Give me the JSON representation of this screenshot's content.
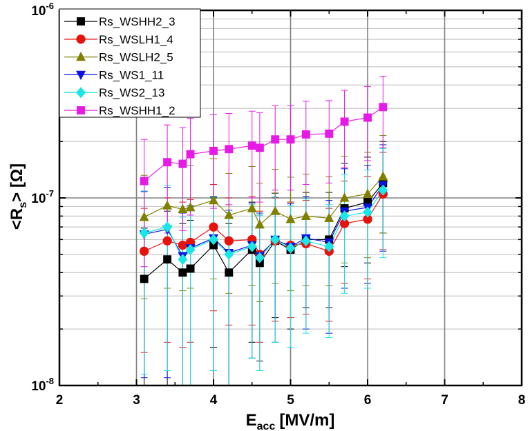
{
  "chart_data": {
    "type": "line",
    "title": "",
    "xlabel": {
      "main": "E",
      "sub": "acc",
      "unit": "[MV/m]"
    },
    "ylabel": {
      "pre": "<R",
      "sub": "s",
      "post": "> [Ω]"
    },
    "xlim": [
      2,
      8
    ],
    "ylim": [
      1e-08,
      1e-06
    ],
    "yscale": "log",
    "grid": true,
    "legend_position": "top-left",
    "xticks": [
      "2",
      "3",
      "4",
      "5",
      "6",
      "7",
      "8"
    ],
    "yticks": [
      {
        "value": 1e-08,
        "base": "10",
        "exp": "-8"
      },
      {
        "value": 1e-07,
        "base": "10",
        "exp": "-7"
      },
      {
        "value": 1e-06,
        "base": "10",
        "exp": "-6"
      }
    ],
    "x": [
      3.1,
      3.4,
      3.6,
      3.7,
      4.0,
      4.2,
      4.5,
      4.6,
      4.8,
      5.0,
      5.2,
      5.5,
      5.7,
      6.0,
      6.2
    ],
    "series": [
      {
        "name": "Rs_WSHH2_3",
        "color": "#000000",
        "marker": "square",
        "y": [
          3.7e-08,
          4.7e-08,
          4e-08,
          4.2e-08,
          5.6e-08,
          4e-08,
          5.3e-08,
          4.5e-08,
          5.9e-08,
          5.3e-08,
          6e-08,
          6e-08,
          8.8e-08,
          9.5e-08,
          1.2e-07
        ],
        "err_up": [
          3.2e-08,
          3.8e-08,
          3.3e-08,
          3.4e-08,
          4.4e-08,
          3.3e-08,
          4.2e-08,
          3.6e-08,
          4.7e-08,
          4.2e-08,
          4.7e-08,
          4.7e-08,
          6.5e-08,
          7e-08,
          8e-08
        ],
        "err_lo": [
          3.4e-08,
          4.4e-08,
          3.7e-08,
          3.9e-08,
          4e-08,
          3.75e-08,
          3.6e-08,
          3.15e-08,
          3.6e-08,
          3.3e-08,
          3.4e-08,
          3.4e-08,
          4.5e-08,
          5e-08,
          5.5e-08
        ]
      },
      {
        "name": "Rs_WSLH1_4",
        "color": "#e8120c",
        "marker": "circle",
        "y": [
          5.2e-08,
          5.9e-08,
          5.6e-08,
          5.8e-08,
          7e-08,
          5.9e-08,
          6e-08,
          5e-08,
          5.9e-08,
          5.6e-08,
          5.7e-08,
          5.2e-08,
          7.3e-08,
          7.7e-08,
          1.05e-07
        ],
        "err_up": [
          3.6e-08,
          4.1e-08,
          3.9e-08,
          4e-08,
          4.8e-08,
          4.1e-08,
          4.2e-08,
          3.5e-08,
          4.1e-08,
          3.9e-08,
          4e-08,
          3.6e-08,
          5e-08,
          5.3e-08,
          7e-08
        ],
        "err_lo": [
          3.7e-08,
          4.2e-08,
          4e-08,
          4.1e-08,
          4.5e-08,
          3.8e-08,
          3.9e-08,
          3.3e-08,
          3.7e-08,
          3.3e-08,
          3.3e-08,
          3e-08,
          3.8e-08,
          4e-08,
          5.2e-08
        ]
      },
      {
        "name": "Rs_WSLH2_5",
        "color": "#808000",
        "marker": "triangle-up",
        "y": [
          7.9e-08,
          9.1e-08,
          8.7e-08,
          8.9e-08,
          9.7e-08,
          8.1e-08,
          8.8e-08,
          7.2e-08,
          8.5e-08,
          7.7e-08,
          8e-08,
          7.8e-08,
          1e-07,
          1.05e-07,
          1.3e-07
        ],
        "err_up": [
          5.3e-08,
          6.1e-08,
          5.8e-08,
          6e-08,
          6.5e-08,
          5.4e-08,
          5.9e-08,
          4.8e-08,
          5.7e-08,
          5.2e-08,
          5.4e-08,
          5.2e-08,
          6.7e-08,
          7e-08,
          8.5e-08
        ],
        "err_lo": [
          5e-08,
          5.8e-08,
          5.5e-08,
          5.6e-08,
          6e-08,
          5e-08,
          5.4e-08,
          4.4e-08,
          5e-08,
          4.5e-08,
          4.6e-08,
          4.4e-08,
          5.5e-08,
          5.7e-08,
          6.5e-08
        ]
      },
      {
        "name": "Rs_WS1_11",
        "color": "#0a14e0",
        "marker": "triangle-down",
        "y": [
          6.4e-08,
          6.8e-08,
          4.9e-08,
          5.4e-08,
          6.1e-08,
          5.1e-08,
          5.6e-08,
          4.9e-08,
          6e-08,
          5.5e-08,
          6.1e-08,
          5.8e-08,
          8.5e-08,
          8.9e-08,
          1.17e-07
        ],
        "err_up": [
          4.4e-08,
          4.6e-08,
          3.4e-08,
          3.7e-08,
          4.1e-08,
          3.5e-08,
          3.8e-08,
          3.4e-08,
          4.1e-08,
          3.8e-08,
          4.1e-08,
          3.9e-08,
          5.8e-08,
          6e-08,
          7.5e-08
        ],
        "err_lo": [
          5.3e-08,
          5.7e-08,
          4e-08,
          4.5e-08,
          4.9e-08,
          4.1e-08,
          4.2e-08,
          3.7e-08,
          4.3e-08,
          3.9e-08,
          4.1e-08,
          3.9e-08,
          5.2e-08,
          5.4e-08,
          6.5e-08
        ]
      },
      {
        "name": "Rs_WS2_13",
        "color": "#19e6e6",
        "marker": "diamond",
        "y": [
          6.5e-08,
          7e-08,
          4.7e-08,
          5.3e-08,
          6e-08,
          5e-08,
          5.5e-08,
          4.8e-08,
          6e-08,
          5.4e-08,
          5.9e-08,
          5.5e-08,
          8e-08,
          8.4e-08,
          1.1e-07
        ],
        "err_up": [
          4.4e-08,
          4.7e-08,
          3.2e-08,
          3.6e-08,
          4.1e-08,
          3.4e-08,
          3.7e-08,
          3.3e-08,
          4.1e-08,
          3.7e-08,
          4e-08,
          3.7e-08,
          5.4e-08,
          5.7e-08,
          7.3e-08
        ],
        "err_lo": [
          5.35e-08,
          5.8e-08,
          3.85e-08,
          4.35e-08,
          4.8e-08,
          4e-08,
          4.1e-08,
          3.6e-08,
          4.3e-08,
          3.8e-08,
          4e-08,
          3.7e-08,
          4.9e-08,
          5.1e-08,
          6.2e-08
        ]
      },
      {
        "name": "Rs_WSHH1_2",
        "color": "#e619e6",
        "marker": "square",
        "y": [
          1.23e-07,
          1.55e-07,
          1.52e-07,
          1.71e-07,
          1.78e-07,
          1.82e-07,
          1.9e-07,
          1.85e-07,
          2.05e-07,
          2.05e-07,
          2.18e-07,
          2.2e-07,
          2.55e-07,
          2.68e-07,
          3.05e-07
        ],
        "err_up": [
          8.2e-08,
          9e-08,
          8.5e-08,
          9.5e-08,
          1e-07,
          1e-07,
          1e-07,
          1e-07,
          1.05e-07,
          1.05e-07,
          1.1e-07,
          1.1e-07,
          1.2e-07,
          1.25e-07,
          1.4e-07
        ],
        "err_lo": [
          8e-08,
          9e-08,
          8.5e-08,
          9e-08,
          9e-08,
          9e-08,
          9e-08,
          9e-08,
          9.5e-08,
          9.5e-08,
          1e-07,
          1e-07,
          1.1e-07,
          1.1e-07,
          1.2e-07
        ]
      }
    ]
  }
}
